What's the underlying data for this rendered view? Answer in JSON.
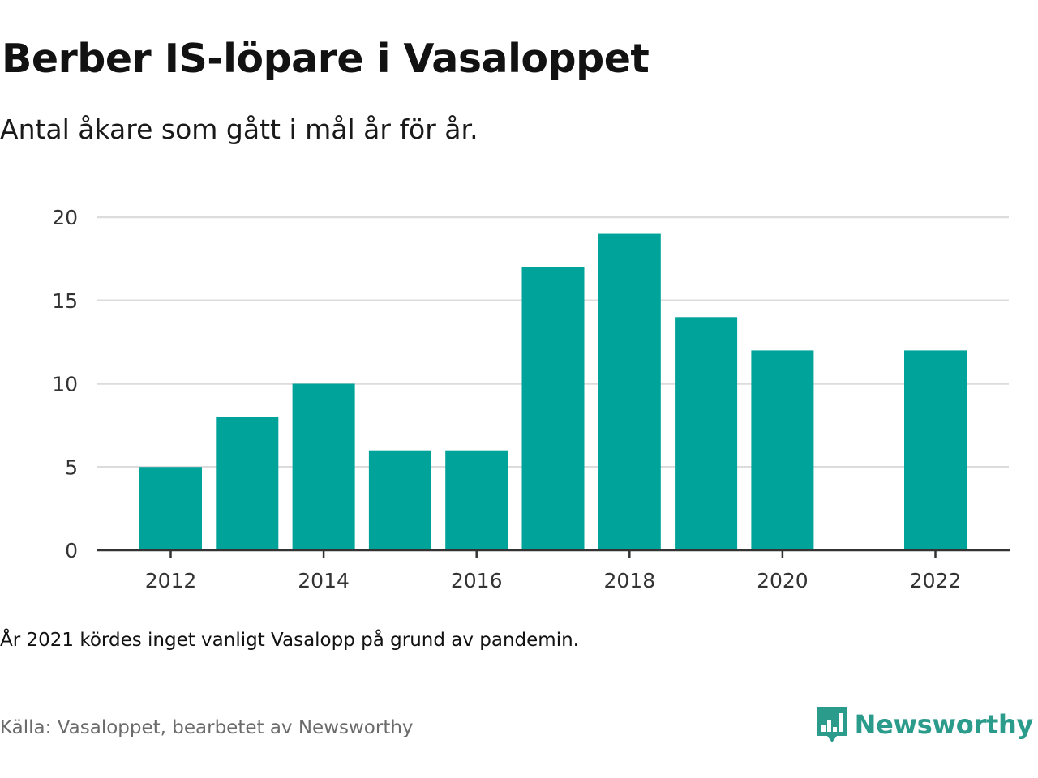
{
  "title": "Berber IS-löpare i Vasaloppet",
  "subtitle": "Antal åkare som gått i mål år för år.",
  "note": "År 2021 kördes inget vanligt Vasalopp på grund av pandemin.",
  "source": "Källa: Vasaloppet, bearbetet av Newsworthy",
  "brand": {
    "name": "Newsworthy",
    "color": "#2b9b8b",
    "icon": "bar-chart-speech-bubble-icon"
  },
  "colors": {
    "bar": "#00a39a",
    "grid": "#dcdcdc",
    "axis": "#333333"
  },
  "chart_data": {
    "type": "bar",
    "title": "Berber IS-löpare i Vasaloppet",
    "subtitle": "Antal åkare som gått i mål år för år.",
    "xlabel": "",
    "ylabel": "",
    "categories": [
      2012,
      2013,
      2014,
      2015,
      2016,
      2017,
      2018,
      2019,
      2020,
      2021,
      2022
    ],
    "values": [
      5,
      8,
      10,
      6,
      6,
      17,
      19,
      14,
      12,
      null,
      12
    ],
    "xticks": [
      "2012",
      "2014",
      "2016",
      "2018",
      "2020",
      "2022"
    ],
    "yticks": [
      "0",
      "5",
      "10",
      "15",
      "20"
    ],
    "ylim": [
      0,
      20
    ],
    "grid": true,
    "legend": "none"
  }
}
